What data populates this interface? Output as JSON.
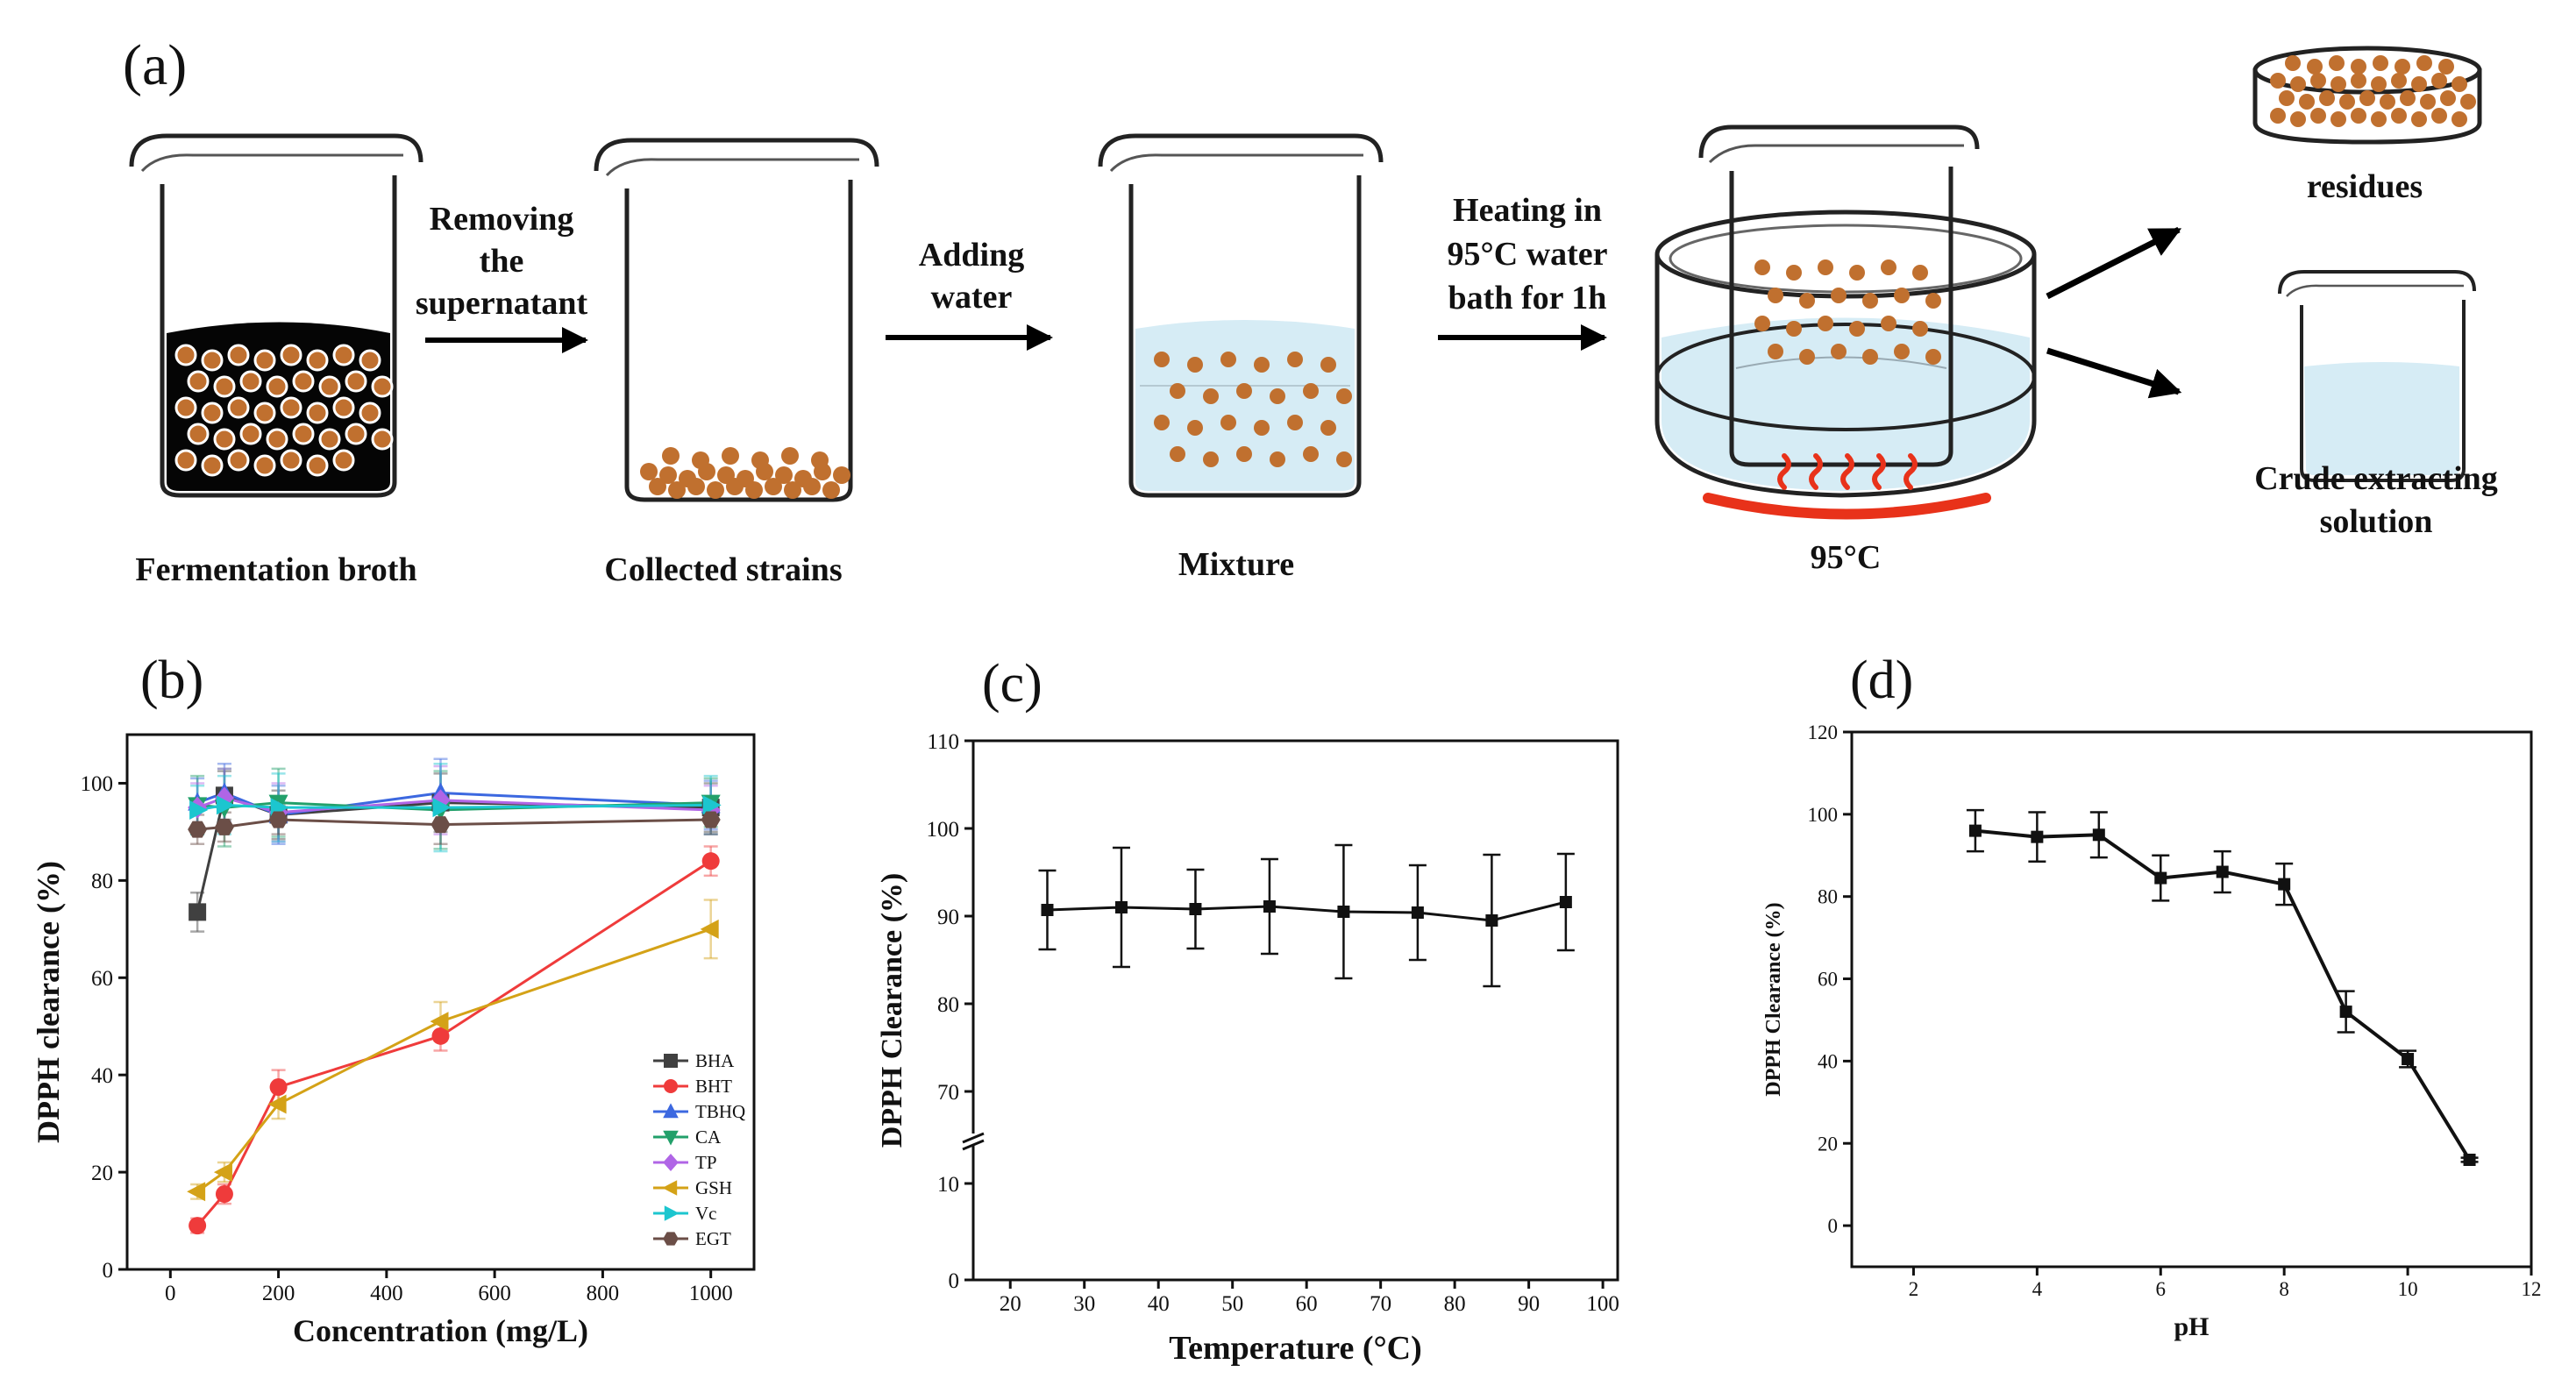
{
  "panel_labels": {
    "a": "(a)",
    "b": "(b)",
    "c": "(c)",
    "d": "(d)"
  },
  "process": {
    "steps": {
      "broth": "Fermentation broth",
      "strains": "Collected strains",
      "mixture": "Mixture",
      "bath_temp": "95°C",
      "residues": "residues",
      "crude_1": "Crude extracting",
      "crude_2": "solution"
    },
    "arrows": {
      "removing_1": "Removing",
      "removing_2": "the",
      "removing_3": "supernatant",
      "adding_1": "Adding",
      "adding_2": "water",
      "heating_1": "Heating in",
      "heating_2": "95°C water",
      "heating_3": "bath for 1h"
    },
    "colors": {
      "bead": "#c0702f",
      "broth": "#050505",
      "water": "#d6ecf5",
      "heater": "#e8321a"
    }
  },
  "chart_data": [
    {
      "panel": "b",
      "type": "line",
      "xlabel": "Concentration (mg/L)",
      "ylabel": "DPPH clearance (%)",
      "xlim": [
        -80,
        1080
      ],
      "ylim": [
        0,
        110
      ],
      "xticks": [
        0,
        200,
        400,
        600,
        800,
        1000
      ],
      "yticks": [
        0,
        20,
        40,
        60,
        80,
        100
      ],
      "x": [
        50,
        100,
        200,
        500,
        1000
      ],
      "legend_position": "bottom-right",
      "series": [
        {
          "name": "BHA",
          "marker": "square",
          "color": "#404040",
          "values": [
            73.5,
            97.5,
            93.5,
            96,
            95
          ],
          "errors": [
            4,
            5,
            5,
            6,
            5
          ]
        },
        {
          "name": "BHT",
          "marker": "circle",
          "color": "#ef3b3b",
          "values": [
            9,
            15.5,
            37.5,
            48,
            84
          ],
          "errors": [
            1.5,
            2,
            3.5,
            3,
            3
          ]
        },
        {
          "name": "TBHQ",
          "marker": "triangle-up",
          "color": "#3c68e0",
          "values": [
            96,
            98,
            93.5,
            98,
            95.5
          ],
          "errors": [
            5,
            6,
            6,
            7,
            5
          ]
        },
        {
          "name": "CA",
          "marker": "triangle-down",
          "color": "#22a06a",
          "values": [
            95.5,
            95,
            96,
            94.5,
            96
          ],
          "errors": [
            6,
            8,
            7,
            8,
            5
          ]
        },
        {
          "name": "TP",
          "marker": "diamond",
          "color": "#b065e6",
          "values": [
            95,
            97,
            94,
            96.5,
            94.5
          ],
          "errors": [
            5,
            6,
            6,
            7,
            5
          ]
        },
        {
          "name": "GSH",
          "marker": "triangle-left",
          "color": "#d4a217",
          "values": [
            16,
            20,
            34,
            51,
            70
          ],
          "errors": [
            1.5,
            2,
            3,
            4,
            6
          ]
        },
        {
          "name": "Vc",
          "marker": "triangle-right",
          "color": "#1cc6cf",
          "values": [
            94.5,
            95.5,
            95,
            95,
            95.5
          ],
          "errors": [
            5,
            6,
            7,
            9,
            6
          ]
        },
        {
          "name": "EGT",
          "marker": "hexagon",
          "color": "#6b4e47",
          "values": [
            90.5,
            91,
            92.5,
            91.5,
            92.5
          ],
          "errors": [
            3,
            3,
            3,
            4,
            3
          ]
        }
      ]
    },
    {
      "panel": "c",
      "type": "line",
      "xlabel": "Temperature (°C)",
      "ylabel": "DPPH Clearance (%)",
      "xlim": [
        15,
        102
      ],
      "ylim": [
        0,
        110
      ],
      "axis_break": [
        15,
        65
      ],
      "xticks": [
        20,
        30,
        40,
        50,
        60,
        70,
        80,
        90,
        100
      ],
      "yticks": [
        0,
        10,
        70,
        80,
        90,
        100,
        110
      ],
      "x": [
        25,
        35,
        45,
        55,
        65,
        75,
        85,
        95
      ],
      "series": [
        {
          "name": "DPPH clearance",
          "marker": "square",
          "color": "#111111",
          "values": [
            90.7,
            91,
            90.8,
            91.1,
            90.5,
            90.4,
            89.5,
            91.6
          ],
          "errors": [
            4.5,
            6.8,
            4.5,
            5.4,
            7.6,
            5.4,
            7.5,
            5.5
          ]
        }
      ]
    },
    {
      "panel": "d",
      "type": "line",
      "xlabel": "pH",
      "ylabel": "DPPH Clearance (%)",
      "xlim": [
        1,
        12
      ],
      "ylim": [
        -10,
        120
      ],
      "xticks": [
        2,
        4,
        6,
        8,
        10,
        12
      ],
      "yticks": [
        0,
        20,
        40,
        60,
        80,
        100,
        120
      ],
      "x": [
        3,
        4,
        5,
        6,
        7,
        8,
        9,
        10,
        11
      ],
      "series": [
        {
          "name": "DPPH clearance",
          "marker": "square",
          "color": "#111111",
          "values": [
            96,
            94.5,
            95,
            84.5,
            86,
            83,
            52,
            40.5,
            16
          ],
          "errors": [
            5,
            6,
            5.5,
            5.5,
            5,
            5,
            5,
            2,
            0.5
          ]
        }
      ]
    }
  ]
}
